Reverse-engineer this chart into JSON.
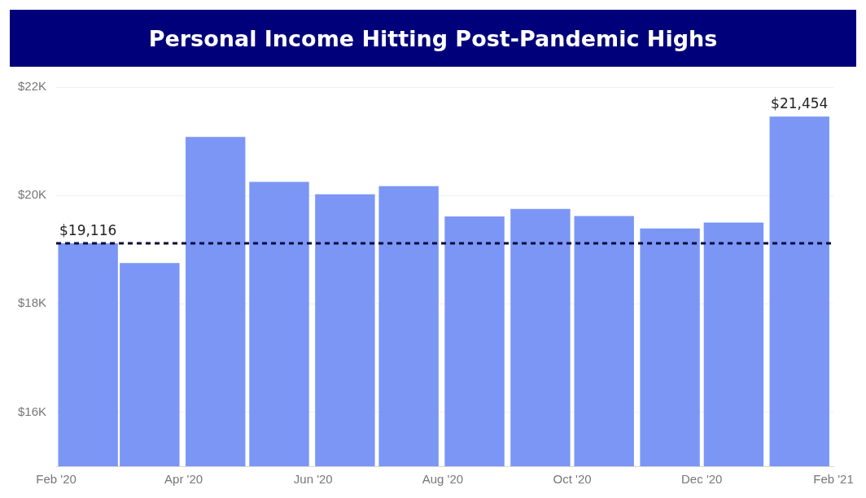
{
  "chart_data": {
    "type": "bar",
    "title": "Personal Income Hitting Post-Pandemic Highs",
    "x": [
      "2020-02-16",
      "2020-03-16",
      "2020-04-16",
      "2020-05-16",
      "2020-06-16",
      "2020-07-16",
      "2020-08-16",
      "2020-09-16",
      "2020-10-16",
      "2020-11-16",
      "2020-12-16",
      "2021-01-16"
    ],
    "values": [
      19116,
      18750,
      21080,
      20250,
      20020,
      20170,
      19610,
      19750,
      19620,
      19390,
      19500,
      21454
    ],
    "value_labels": [
      "$19,116",
      null,
      null,
      null,
      null,
      null,
      null,
      null,
      null,
      null,
      null,
      "$21,454"
    ],
    "color": "#7b96f5",
    "xlim": [
      "2020-02-01",
      "2021-02-01"
    ],
    "xticks": [
      {
        "value": "2020-02-01",
        "label": "Feb '20"
      },
      {
        "value": "2020-04-01",
        "label": "Apr '20"
      },
      {
        "value": "2020-06-01",
        "label": "Jun '20"
      },
      {
        "value": "2020-08-01",
        "label": "Aug '20"
      },
      {
        "value": "2020-10-01",
        "label": "Oct '20"
      },
      {
        "value": "2020-12-01",
        "label": "Dec '20"
      },
      {
        "value": "2021-02-01",
        "label": "Feb '21"
      }
    ],
    "ylim": [
      15000,
      22000
    ],
    "yticks": [
      {
        "value": 16000,
        "label": "$16K"
      },
      {
        "value": 18000,
        "label": "$18K"
      },
      {
        "value": 20000,
        "label": "$20K"
      },
      {
        "value": 22000,
        "label": "$22K"
      }
    ],
    "ref_lines": [
      {
        "axis": "y",
        "value": 19116,
        "color": "#0a0a3a",
        "line_style": "dashed"
      }
    ],
    "grid": "y",
    "legend": false
  }
}
